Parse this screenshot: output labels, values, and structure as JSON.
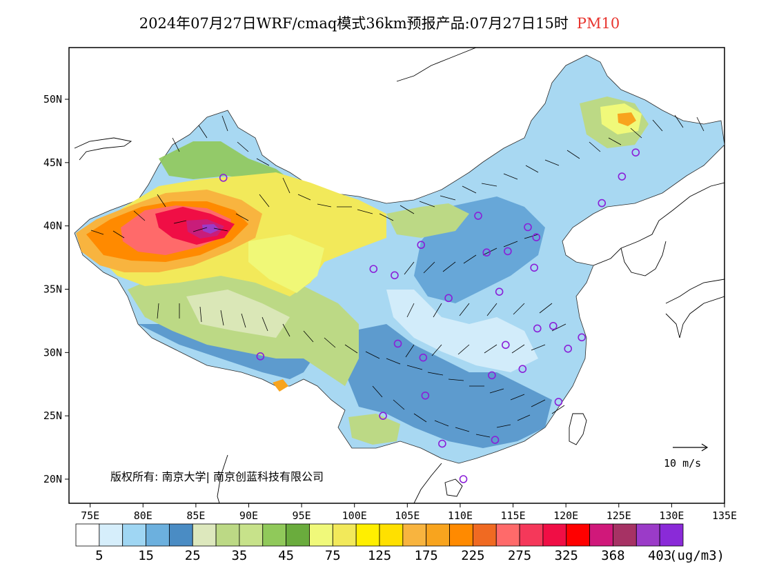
{
  "title": {
    "main": "2024年07月27日WRF/cmaq模式36km预报产品:07月27日15时",
    "variable": "PM10"
  },
  "copyright": "版权所有: 南京大学| 南京创蓝科技有限公司",
  "wind_scale": {
    "label": "10 m/s"
  },
  "axes": {
    "x_ticks": [
      "75E",
      "80E",
      "85E",
      "90E",
      "95E",
      "100E",
      "105E",
      "110E",
      "115E",
      "120E",
      "125E",
      "130E",
      "135E"
    ],
    "y_ticks": [
      "50N",
      "45N",
      "40N",
      "35N",
      "30N",
      "25N",
      "20N"
    ]
  },
  "legend": {
    "unit": "(ug/m3)",
    "labels": [
      "5",
      "15",
      "25",
      "35",
      "45",
      "75",
      "125",
      "175",
      "225",
      "275",
      "325",
      "368",
      "403"
    ],
    "colors": [
      "#ffffff",
      "#d6eefb",
      "#9fd6f3",
      "#6cb0de",
      "#4a8cc4",
      "#dde8bd",
      "#bcd985",
      "#c7e28a",
      "#90c95a",
      "#6aac3d",
      "#f0f97a",
      "#f2e95a",
      "#ffef00",
      "#ffe000",
      "#f8b43f",
      "#f8a41e",
      "#ff8a00",
      "#f06a22",
      "#ff6a6a",
      "#f5385a",
      "#f00e45",
      "#ff0000",
      "#d0187a",
      "#a63264",
      "#9b3bc8",
      "#8a2ad8"
    ]
  },
  "stations": [
    {
      "name": "s1",
      "lon": 87.6,
      "lat": 43.8
    },
    {
      "name": "s2",
      "lon": 91.1,
      "lat": 29.7
    },
    {
      "name": "s3",
      "lon": 101.8,
      "lat": 36.6
    },
    {
      "name": "s4",
      "lon": 103.8,
      "lat": 36.1
    },
    {
      "name": "s5",
      "lon": 106.3,
      "lat": 38.5
    },
    {
      "name": "s6",
      "lon": 111.7,
      "lat": 40.8
    },
    {
      "name": "s7",
      "lon": 112.5,
      "lat": 37.9
    },
    {
      "name": "s8",
      "lon": 114.5,
      "lat": 38.0
    },
    {
      "name": "s9",
      "lon": 116.4,
      "lat": 39.9
    },
    {
      "name": "s10",
      "lon": 117.2,
      "lat": 39.1
    },
    {
      "name": "s11",
      "lon": 117.0,
      "lat": 36.7
    },
    {
      "name": "s12",
      "lon": 113.7,
      "lat": 34.8
    },
    {
      "name": "s13",
      "lon": 108.9,
      "lat": 34.3
    },
    {
      "name": "s14",
      "lon": 104.1,
      "lat": 30.7
    },
    {
      "name": "s15",
      "lon": 106.5,
      "lat": 29.6
    },
    {
      "name": "s16",
      "lon": 114.3,
      "lat": 30.6
    },
    {
      "name": "s17",
      "lon": 117.3,
      "lat": 31.9
    },
    {
      "name": "s18",
      "lon": 118.8,
      "lat": 32.1
    },
    {
      "name": "s19",
      "lon": 121.5,
      "lat": 31.2
    },
    {
      "name": "s20",
      "lon": 120.2,
      "lat": 30.3
    },
    {
      "name": "s21",
      "lon": 115.9,
      "lat": 28.7
    },
    {
      "name": "s22",
      "lon": 113.0,
      "lat": 28.2
    },
    {
      "name": "s23",
      "lon": 106.7,
      "lat": 26.6
    },
    {
      "name": "s24",
      "lon": 102.7,
      "lat": 25.0
    },
    {
      "name": "s25",
      "lon": 108.3,
      "lat": 22.8
    },
    {
      "name": "s26",
      "lon": 113.3,
      "lat": 23.1
    },
    {
      "name": "s27",
      "lon": 119.3,
      "lat": 26.1
    },
    {
      "name": "s28",
      "lon": 110.3,
      "lat": 20.0
    },
    {
      "name": "s29",
      "lon": 123.4,
      "lat": 41.8
    },
    {
      "name": "s30",
      "lon": 125.3,
      "lat": 43.9
    },
    {
      "name": "s31",
      "lon": 126.6,
      "lat": 45.8
    }
  ]
}
